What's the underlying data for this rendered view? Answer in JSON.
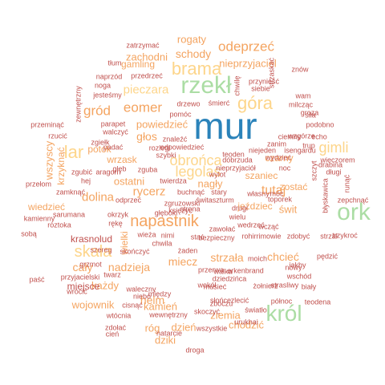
{
  "palette": {
    "blue": "#2b83ba",
    "green": "#abdda4",
    "yellow": "#fdd58a",
    "orange": "#f4a460",
    "red": "#d7191c",
    "dark": "#c0504d"
  },
  "words": [
    "mur",
    "ork",
    "król",
    "rzekł",
    "brama",
    "góra",
    "gimli",
    "odeprzeć",
    "napastnik",
    "skała",
    "obrońca",
    "legolas",
    "tutaj",
    "gród",
    "eomer",
    "pieczara",
    "rogaty",
    "schody",
    "zachodni",
    "nieprzyjaciel",
    "dolina",
    "strzała",
    "chcieć",
    "miecz",
    "nadzieja",
    "wojownik",
    "cały",
    "helm",
    "każdy",
    "głos",
    "rycerz",
    "powiedzieć",
    "ostatni",
    "potok",
    "ziemia",
    "chodzić",
    "dziki",
    "dzień",
    "róg",
    "kamień",
    "miejsce",
    "krasnolud",
    "wszyscy",
    "krzyknąć",
    "lar",
    "wrzask",
    "nagły",
    "szaniec",
    "czarny",
    "świt",
    "zostać",
    "wiedzieć",
    "jeździec",
    "wielki",
    "zatrzymać",
    "gamling",
    "tłum",
    "naprzód",
    "przedrzeć",
    "noga",
    "jesteśmy",
    "zewnętrzny",
    "przeminąć",
    "rzucić",
    "parapet",
    "walczyć",
    "zgiełk",
    "padać",
    "rozległ",
    "odpowiedzieć",
    "szybki",
    "znaleźć",
    "pomóc",
    "drzewo",
    "śmierć",
    "chwilę",
    "przynieść",
    "strzaskać",
    "siebie",
    "znów",
    "wam",
    "milcząc",
    "siła",
    "groza",
    "podobno",
    "echo",
    "trup",
    "zanim",
    "niejeden",
    "teoden",
    "wydzieć",
    "nieprzyjaciół",
    "noc",
    "drabina",
    "długi",
    "szczyt",
    "runąć",
    "zepchnąć",
    "błyskawica",
    "zgruzowski",
    "odprzeć",
    "zgubić",
    "hej",
    "głęb",
    "zguba",
    "twierdza",
    "buchnąć",
    "stary",
    "własny",
    "móc",
    "toporek",
    "zamknąć",
    "aragorn",
    "strona",
    "drugi",
    "sarumana",
    "kamienny",
    "roztoka",
    "okrzyk",
    "przełom",
    "rękę",
    "sobą",
    "szereg",
    "skończyć",
    "wieża",
    "nimi",
    "stać",
    "chwila",
    "żaden",
    "bezpieczny",
    "rohirrimowie",
    "wcząć",
    "zdobyć",
    "strzał",
    "trzykroć",
    "pędzić",
    "wielu",
    "zawołać",
    "wedrzeć",
    "moich",
    "nowy",
    "jakby",
    "wschód",
    "przerwa",
    "erkenbrand",
    "walka",
    "dziedzińca",
    "wokół",
    "musieć",
    "żołnierz",
    "strasliwy",
    "paść",
    "grzmot",
    "twarz",
    "przyjacielski",
    "wrócić",
    "waleczny",
    "niebo",
    "cisnąć",
    "wtócnia",
    "zdołać",
    "cień",
    "wewnętrzny",
    "natarcie",
    "wszystkie",
    "droga",
    "urukhai",
    "światło",
    "skoczyć",
    "zboczu",
    "północ",
    "teodena",
    "biały",
    "słońce",
    "zlecić",
    "między",
    "księżyc",
    "świtaszturm",
    "isengardu",
    "dóbrzuda",
    "wylot",
    "głęboki",
    "ciemny",
    "wieczorem",
    "wzgórze",
    "trzymać",
    "zbroja",
    "wiatr",
    "nieprzyjaciela",
    "rynek",
    "zgiełk"
  ]
}
